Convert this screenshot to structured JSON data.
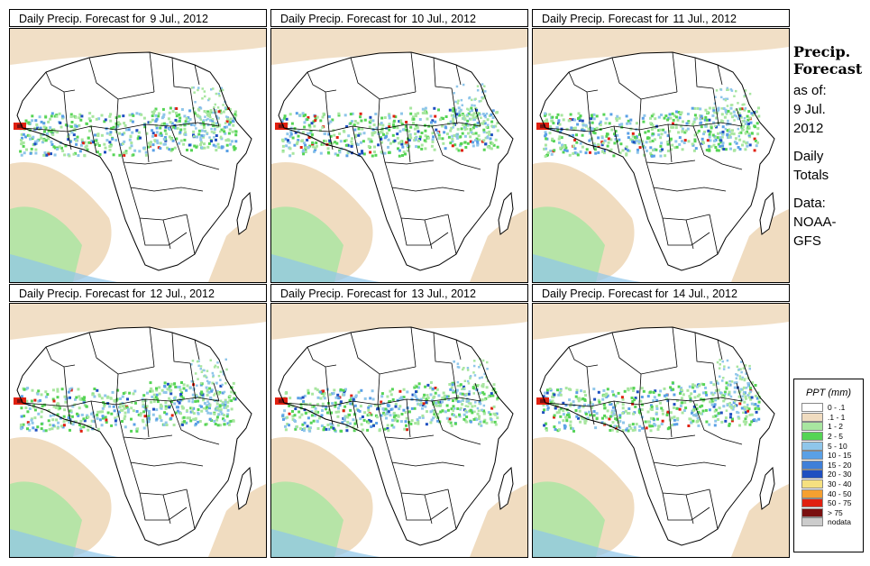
{
  "panels": [
    {
      "label": "Daily Precip. Forecast for",
      "date": "9 Jul., 2012"
    },
    {
      "label": "Daily Precip. Forecast for",
      "date": "10 Jul., 2012"
    },
    {
      "label": "Daily Precip. Forecast for",
      "date": "11 Jul., 2012"
    },
    {
      "label": "Daily Precip. Forecast for",
      "date": "12 Jul., 2012"
    },
    {
      "label": "Daily Precip. Forecast for",
      "date": "13 Jul., 2012"
    },
    {
      "label": "Daily Precip. Forecast for",
      "date": "14 Jul., 2012"
    }
  ],
  "sidebar": {
    "title_line1": "Precip.",
    "title_line2": "Forecast",
    "asof_1": "as of:",
    "asof_2": "9 Jul.",
    "asof_3": "2012",
    "totals_1": "Daily",
    "totals_2": "Totals",
    "data_1": "Data:",
    "data_2": "NOAA-",
    "data_3": "GFS"
  },
  "legend": {
    "title": "PPT (mm)",
    "items": [
      {
        "label": "0 - .1",
        "color": "#ffffff"
      },
      {
        "label": ".1 - 1",
        "color": "#f0dcc0"
      },
      {
        "label": "1 - 2",
        "color": "#a8e6a0"
      },
      {
        "label": "2 - 5",
        "color": "#55d455"
      },
      {
        "label": "5 - 10",
        "color": "#8fc6ea"
      },
      {
        "label": "10 - 15",
        "color": "#5aa0e6"
      },
      {
        "label": "15 - 20",
        "color": "#3f7fd8"
      },
      {
        "label": "20 - 30",
        "color": "#1f4fc0"
      },
      {
        "label": "30 - 40",
        "color": "#f5e080"
      },
      {
        "label": "40 - 50",
        "color": "#f5a030"
      },
      {
        "label": "50 - 75",
        "color": "#e02010"
      },
      {
        "label": "> 75",
        "color": "#7a1010"
      },
      {
        "label": "nodata",
        "color": "#cccccc"
      }
    ]
  }
}
